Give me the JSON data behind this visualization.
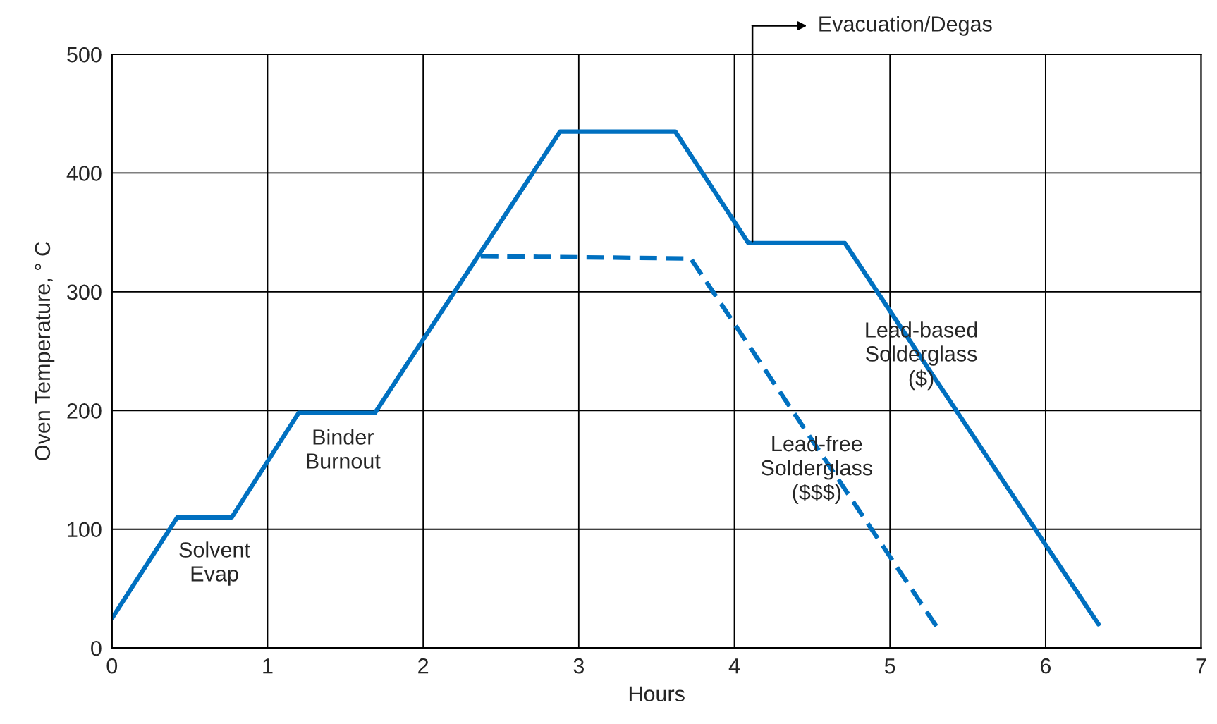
{
  "chart_data": {
    "type": "line",
    "xlabel": "Hours",
    "ylabel": "Oven Temperature, ° C",
    "xlim": [
      0,
      7
    ],
    "ylim": [
      0,
      500
    ],
    "xticks": [
      0,
      1,
      2,
      3,
      4,
      5,
      6,
      7
    ],
    "yticks": [
      0,
      100,
      200,
      300,
      400,
      500
    ],
    "grid": true,
    "series": [
      {
        "color": "#0070c0",
        "line_style": "solid",
        "x": [
          0,
          0.42,
          0.77,
          1.2,
          1.69,
          2.88,
          3.62,
          4.09,
          4.71,
          6.34
        ],
        "values": [
          25,
          110,
          110,
          198,
          198,
          435,
          435,
          341,
          341,
          20
        ]
      },
      {
        "color": "#0070c0",
        "line_style": "dashed",
        "x": [
          2.37,
          3.72,
          5.3
        ],
        "values": [
          330,
          328,
          18
        ]
      }
    ],
    "annotations": [
      "Solvent\nEvap",
      "Binder\nBurnout",
      "Lead-free\nSolderglass\n($$$)",
      "Lead-based\nSolderglass\n($)",
      "Evacuation/Degas"
    ]
  }
}
